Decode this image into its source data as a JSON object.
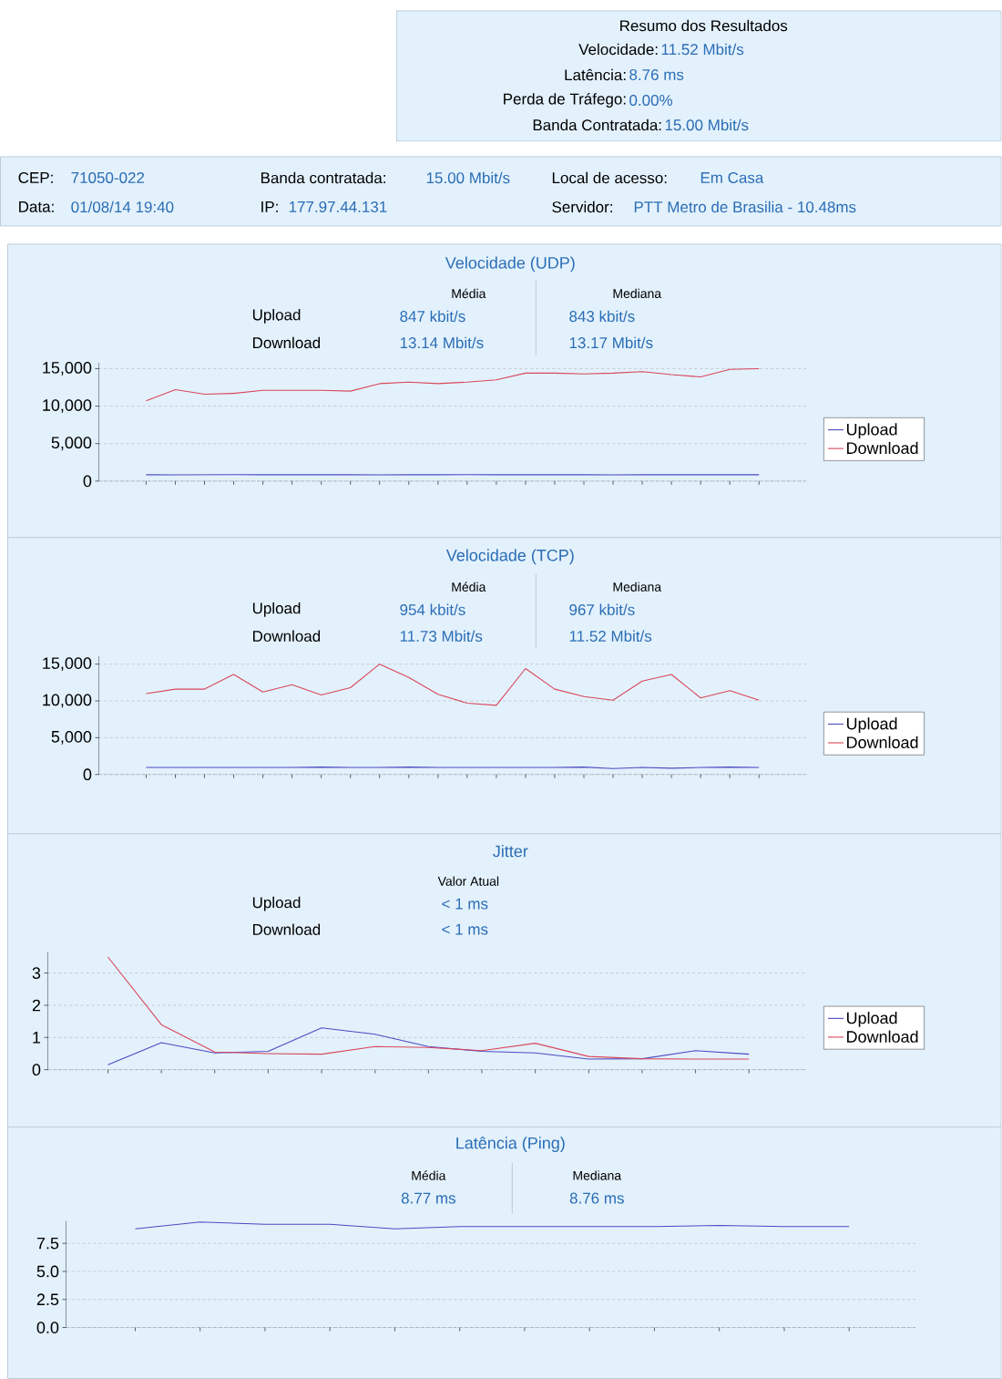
{
  "chart_data": [
    {
      "type": "other",
      "title": "Resumo dos Resultados",
      "annotations": [
        "Velocidade:",
        "11.52 Mbit/s",
        "Latência:",
        "8.76 ms",
        "Perda de Tráfego:",
        "0.00%",
        "Banda Contratada:",
        "15.00 Mbit/s"
      ]
    },
    {
      "type": "other",
      "annotations": [
        "CEP:",
        "71050-022",
        "Banda contratada:",
        "15.00 Mbit/s",
        "Local de acesso:",
        "Em Casa",
        "Data:",
        "01/08/14 19:40",
        "IP:",
        "177.97.44.131",
        "Servidor:",
        "PTT Metro de Brasilia - 10.48ms"
      ]
    },
    {
      "type": "line",
      "title": "Velocidade (UDP)",
      "annotations": [
        "Média",
        "Mediana",
        "Upload",
        "Download",
        "847 kbit/s",
        "843 kbit/s",
        "13.14 Mbit/s",
        "13.17 Mbit/s"
      ],
      "categories": [
        null,
        null,
        null,
        null,
        null,
        null,
        null,
        null,
        null,
        null,
        null,
        null,
        null,
        null,
        null,
        null,
        null,
        null,
        null,
        null,
        null,
        null
      ],
      "series": [
        {
          "name": "Upload",
          "color": "#4b4bc3",
          "values": [
            850,
            840,
            850,
            860,
            850,
            850,
            850,
            850,
            840,
            850,
            850,
            860,
            850,
            850,
            850,
            850,
            840,
            850,
            850,
            850,
            850,
            850
          ]
        },
        {
          "name": "Download",
          "color": "#d9475a",
          "values": [
            10700,
            12200,
            11600,
            11700,
            12100,
            12100,
            12100,
            12000,
            13000,
            13200,
            13000,
            13200,
            13500,
            14400,
            14400,
            14300,
            14400,
            14600,
            14200,
            13900,
            14900,
            15000
          ]
        }
      ],
      "ylim": [
        0,
        15800
      ],
      "yticks": [
        {
          "value": 0,
          "label": "0"
        },
        {
          "value": 5000,
          "label": "5,000"
        },
        {
          "value": 10000,
          "label": "10,000"
        },
        {
          "value": 15000,
          "label": "15,000"
        }
      ],
      "grid": "y",
      "legend": "right",
      "tick_labels": "y",
      "marker": "none",
      "line_style": "solid"
    },
    {
      "type": "line",
      "title": "Velocidade (TCP)",
      "annotations": [
        "Média",
        "Mediana",
        "Upload",
        "Download",
        "954 kbit/s",
        "967 kbit/s",
        "11.73 Mbit/s",
        "11.52 Mbit/s"
      ],
      "categories": [
        null,
        null,
        null,
        null,
        null,
        null,
        null,
        null,
        null,
        null,
        null,
        null,
        null,
        null,
        null,
        null,
        null,
        null,
        null,
        null,
        null,
        null
      ],
      "series": [
        {
          "name": "Upload",
          "color": "#4b4bc3",
          "values": [
            950,
            950,
            950,
            950,
            950,
            950,
            1000,
            950,
            950,
            1000,
            950,
            950,
            950,
            950,
            950,
            1000,
            800,
            950,
            850,
            950,
            1000,
            950
          ]
        },
        {
          "name": "Download",
          "color": "#d9475a",
          "values": [
            11000,
            11600,
            11600,
            13600,
            11200,
            12200,
            10800,
            11800,
            15000,
            13200,
            10900,
            9700,
            9400,
            14400,
            11600,
            10600,
            10100,
            12700,
            13600,
            10400,
            11400,
            10100
          ]
        }
      ],
      "ylim": [
        0,
        16100
      ],
      "yticks": [
        {
          "value": 0,
          "label": "0"
        },
        {
          "value": 5000,
          "label": "5,000"
        },
        {
          "value": 10000,
          "label": "10,000"
        },
        {
          "value": 15000,
          "label": "15,000"
        }
      ],
      "grid": "y",
      "legend": "right",
      "tick_labels": "y",
      "marker": "none",
      "line_style": "solid"
    },
    {
      "type": "line",
      "title": "Jitter",
      "annotations": [
        "Valor Atual",
        "Upload",
        "Download",
        "< 1 ms",
        "< 1 ms"
      ],
      "categories": [
        null,
        null,
        null,
        null,
        null,
        null,
        null,
        null,
        null,
        null,
        null,
        null,
        null
      ],
      "series": [
        {
          "name": "Upload",
          "color": "#4b4bc3",
          "values": [
            0.15,
            0.84,
            0.52,
            0.57,
            1.3,
            1.1,
            0.72,
            0.57,
            0.52,
            0.33,
            0.34,
            0.59,
            0.48
          ]
        },
        {
          "name": "Download",
          "color": "#d9475a",
          "values": [
            3.5,
            1.4,
            0.55,
            0.5,
            0.48,
            0.72,
            0.69,
            0.59,
            0.82,
            0.41,
            0.34,
            0.33,
            0.33
          ]
        }
      ],
      "ylim": [
        0,
        3.65
      ],
      "yticks": [
        0,
        1,
        2,
        3
      ],
      "grid": "y",
      "legend": "right",
      "tick_labels": "y",
      "marker": "none",
      "line_style": "solid"
    },
    {
      "type": "line",
      "title": "Latência (Ping)",
      "annotations": [
        "Média",
        "Mediana",
        "8.77 ms",
        "8.76 ms"
      ],
      "categories": [
        null,
        null,
        null,
        null,
        null,
        null,
        null,
        null,
        null,
        null,
        null,
        null
      ],
      "series": [
        {
          "color": "#4b4bc3",
          "values": [
            8.8,
            9.4,
            9.2,
            9.2,
            8.8,
            9.0,
            9.0,
            9.0,
            9.0,
            9.1,
            9.0,
            9.0
          ]
        }
      ],
      "ylim": [
        0,
        9.5
      ],
      "yticks": [
        {
          "value": 0,
          "label": "0.0"
        },
        2.5,
        {
          "value": 5,
          "label": "5.0"
        },
        7.5
      ],
      "grid": "y",
      "tick_labels": "y",
      "marker": "none",
      "line_style": "solid"
    }
  ]
}
